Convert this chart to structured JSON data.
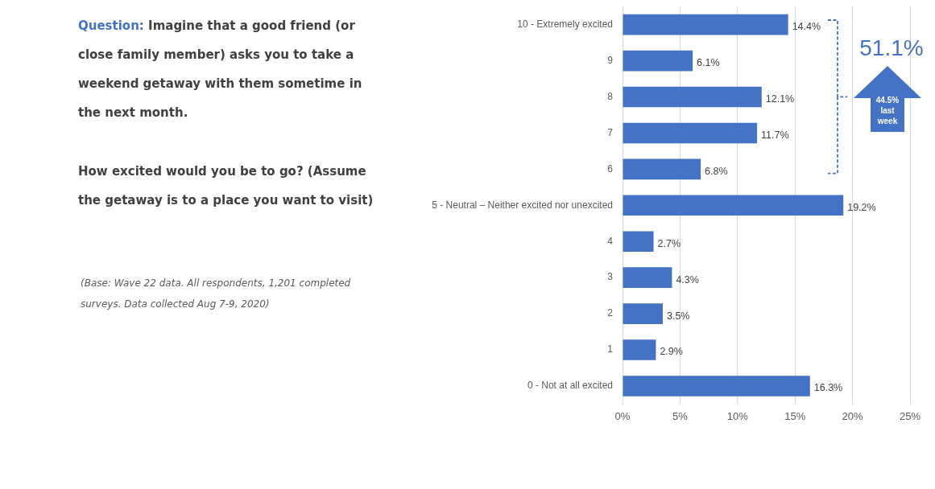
{
  "chart_data": {
    "type": "bar",
    "orientation": "horizontal",
    "title": "Question: Imagine that a good friend (or close family member) asks you to take a weekend getaway with them sometime in the next month.",
    "subtitle": "How excited would you be to go? (Assume the getaway is to a place you want to visit)",
    "categories": [
      "10 - Extremely excited",
      "9",
      "8",
      "7",
      "6",
      "5 - Neutral – Neither excited nor unexcited",
      "4",
      "3",
      "2",
      "1",
      "0 - Not at all excited"
    ],
    "values": [
      14.4,
      6.1,
      12.1,
      11.7,
      6.8,
      19.2,
      2.7,
      4.3,
      3.5,
      2.9,
      16.3
    ],
    "value_labels": [
      "14.4%",
      "6.1%",
      "12.1%",
      "11.7%",
      "6.8%",
      "19.2%",
      "2.7%",
      "4.3%",
      "3.5%",
      "2.9%",
      "16.3%"
    ],
    "color": "#4472c4",
    "xlim": [
      0,
      25
    ],
    "xticks": [
      {
        "value": 0,
        "label": "0%"
      },
      {
        "value": 5,
        "label": "5%"
      },
      {
        "value": 10,
        "label": "10%"
      },
      {
        "value": 15,
        "label": "15%"
      },
      {
        "value": 20,
        "label": "20%"
      },
      {
        "value": 25,
        "label": "25%"
      }
    ],
    "grid": "x",
    "annotations": [
      "51.1%",
      "44.5% last week",
      "(Base: Wave 22 data. All respondents, 1,201 completed surveys. Data collected Aug 7-9, 2020)"
    ]
  }
}
